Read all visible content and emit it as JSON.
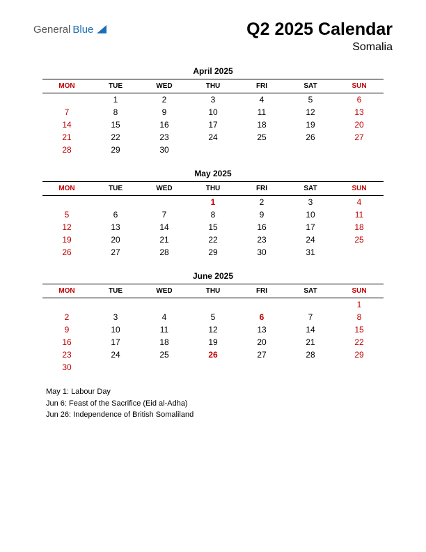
{
  "logo": {
    "part1": "General",
    "part2": "Blue"
  },
  "title": "Q2 2025 Calendar",
  "subtitle": "Somalia",
  "colors": {
    "weekend_header": "#c00000",
    "holiday": "#c00000",
    "text": "#000000",
    "logo_blue": "#1b6fb5"
  },
  "day_headers": [
    "MON",
    "TUE",
    "WED",
    "THU",
    "FRI",
    "SAT",
    "SUN"
  ],
  "weekend_cols": [
    0,
    6
  ],
  "months": [
    {
      "title": "April 2025",
      "weeks": [
        [
          null,
          {
            "d": 1
          },
          {
            "d": 2
          },
          {
            "d": 3
          },
          {
            "d": 4
          },
          {
            "d": 5
          },
          {
            "d": 6,
            "red": true
          }
        ],
        [
          {
            "d": 7,
            "red": true
          },
          {
            "d": 8
          },
          {
            "d": 9
          },
          {
            "d": 10
          },
          {
            "d": 11
          },
          {
            "d": 12
          },
          {
            "d": 13,
            "red": true
          }
        ],
        [
          {
            "d": 14,
            "red": true
          },
          {
            "d": 15
          },
          {
            "d": 16
          },
          {
            "d": 17
          },
          {
            "d": 18
          },
          {
            "d": 19
          },
          {
            "d": 20,
            "red": true
          }
        ],
        [
          {
            "d": 21,
            "red": true
          },
          {
            "d": 22
          },
          {
            "d": 23
          },
          {
            "d": 24
          },
          {
            "d": 25
          },
          {
            "d": 26
          },
          {
            "d": 27,
            "red": true
          }
        ],
        [
          {
            "d": 28,
            "red": true
          },
          {
            "d": 29
          },
          {
            "d": 30
          },
          null,
          null,
          null,
          null
        ]
      ]
    },
    {
      "title": "May 2025",
      "weeks": [
        [
          null,
          null,
          null,
          {
            "d": 1,
            "red": true,
            "bold": true
          },
          {
            "d": 2
          },
          {
            "d": 3
          },
          {
            "d": 4,
            "red": true
          }
        ],
        [
          {
            "d": 5,
            "red": true
          },
          {
            "d": 6
          },
          {
            "d": 7
          },
          {
            "d": 8
          },
          {
            "d": 9
          },
          {
            "d": 10
          },
          {
            "d": 11,
            "red": true
          }
        ],
        [
          {
            "d": 12,
            "red": true
          },
          {
            "d": 13
          },
          {
            "d": 14
          },
          {
            "d": 15
          },
          {
            "d": 16
          },
          {
            "d": 17
          },
          {
            "d": 18,
            "red": true
          }
        ],
        [
          {
            "d": 19,
            "red": true
          },
          {
            "d": 20
          },
          {
            "d": 21
          },
          {
            "d": 22
          },
          {
            "d": 23
          },
          {
            "d": 24
          },
          {
            "d": 25,
            "red": true
          }
        ],
        [
          {
            "d": 26,
            "red": true
          },
          {
            "d": 27
          },
          {
            "d": 28
          },
          {
            "d": 29
          },
          {
            "d": 30
          },
          {
            "d": 31
          },
          null
        ]
      ]
    },
    {
      "title": "June 2025",
      "weeks": [
        [
          null,
          null,
          null,
          null,
          null,
          null,
          {
            "d": 1,
            "red": true
          }
        ],
        [
          {
            "d": 2,
            "red": true
          },
          {
            "d": 3
          },
          {
            "d": 4
          },
          {
            "d": 5
          },
          {
            "d": 6,
            "red": true,
            "bold": true
          },
          {
            "d": 7
          },
          {
            "d": 8,
            "red": true
          }
        ],
        [
          {
            "d": 9,
            "red": true
          },
          {
            "d": 10
          },
          {
            "d": 11
          },
          {
            "d": 12
          },
          {
            "d": 13
          },
          {
            "d": 14
          },
          {
            "d": 15,
            "red": true
          }
        ],
        [
          {
            "d": 16,
            "red": true
          },
          {
            "d": 17
          },
          {
            "d": 18
          },
          {
            "d": 19
          },
          {
            "d": 20
          },
          {
            "d": 21
          },
          {
            "d": 22,
            "red": true
          }
        ],
        [
          {
            "d": 23,
            "red": true
          },
          {
            "d": 24
          },
          {
            "d": 25
          },
          {
            "d": 26,
            "red": true,
            "bold": true
          },
          {
            "d": 27
          },
          {
            "d": 28
          },
          {
            "d": 29,
            "red": true
          }
        ],
        [
          {
            "d": 30,
            "red": true
          },
          null,
          null,
          null,
          null,
          null,
          null
        ]
      ]
    }
  ],
  "holidays": [
    "May 1: Labour Day",
    "Jun 6: Feast of the Sacrifice (Eid al-Adha)",
    "Jun 26: Independence of British Somaliland"
  ]
}
